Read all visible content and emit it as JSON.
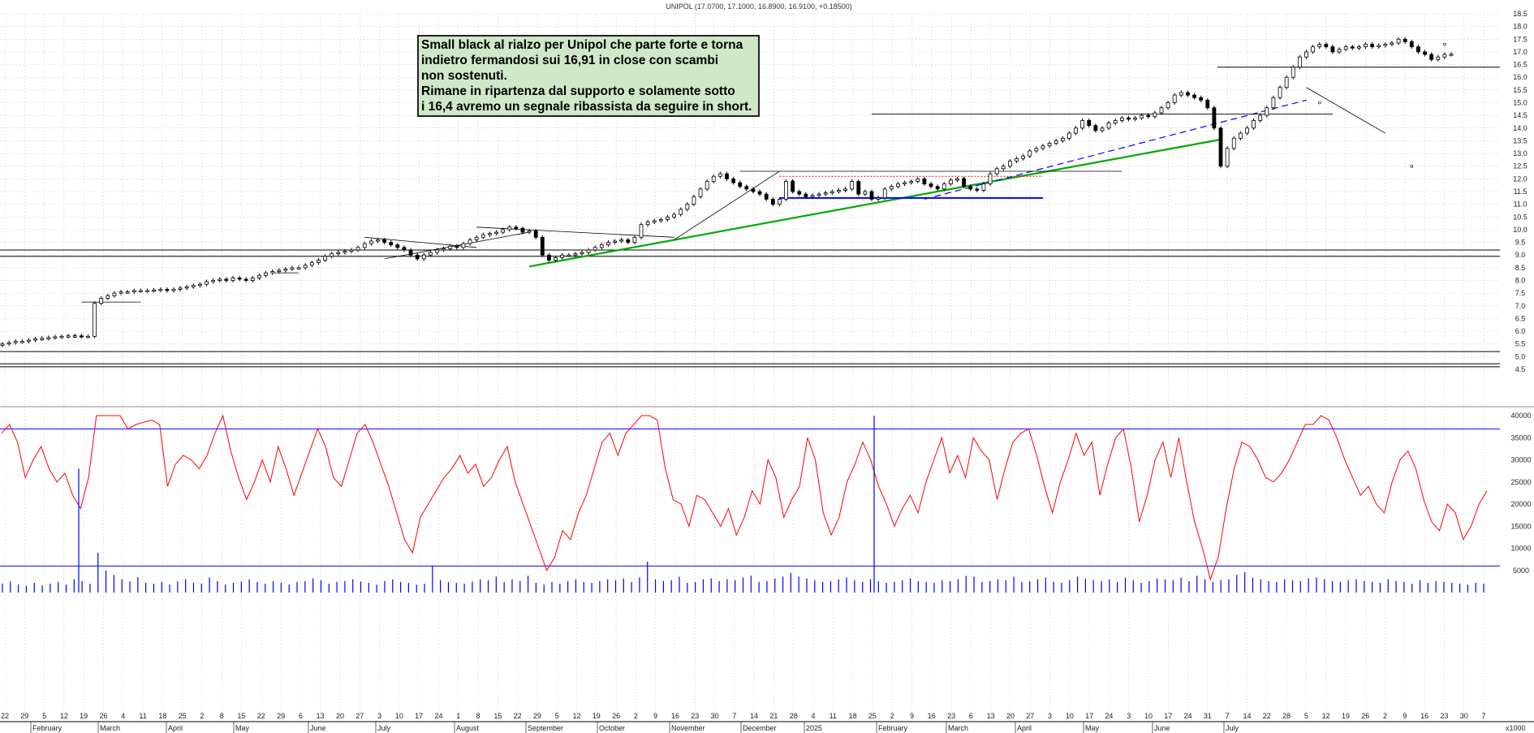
{
  "header": {
    "title": "UNIPOL (17.0700, 17.1000, 16.8900, 16.9100, +0.18500)"
  },
  "note": {
    "lines": [
      "Small black al rialzo per Unipol che parte forte e torna",
      "indietro fermandosi sui 16,91 in close con scambi",
      "non sostenuti.",
      "Rimane in ripartenza dal supporto e solamente sotto",
      "i 16,4 avremo un segnale ribassista da seguire in short."
    ]
  },
  "volume_unit": "x1000",
  "colors": {
    "candle": "#000000",
    "grid": "#a8a8a8",
    "support_green": "#00aa00",
    "blue": "#0000ff",
    "volume": "#ff0000",
    "red_dotted": "#ff0000"
  },
  "chart_data": [
    {
      "type": "candlestick",
      "title": "UNIPOL (17.0700, 17.1000, 16.8900, 16.9100, +0.18500)",
      "ylim": [
        4.5,
        18.5
      ],
      "y_ticks": [
        "4.5",
        "5.0",
        "5.5",
        "6.0",
        "6.5",
        "7.0",
        "7.5",
        "8.0",
        "8.5",
        "9.0",
        "9.5",
        "10.0",
        "10.5",
        "11.0",
        "11.5",
        "12.0",
        "12.5",
        "13.0",
        "13.5",
        "14.0",
        "14.5",
        "15.0",
        "15.5",
        "16.0",
        "16.5",
        "17.0",
        "17.5",
        "18.0",
        "18.5"
      ],
      "last": {
        "open": 17.07,
        "high": 17.1,
        "low": 16.89,
        "close": 16.91,
        "change": 0.185
      },
      "x_ticks": [
        "22",
        "29",
        "5",
        "12",
        "19",
        "26",
        "4",
        "11",
        "18",
        "25",
        "2",
        "8",
        "15",
        "22",
        "29",
        "6",
        "13",
        "20",
        "27",
        "3",
        "10",
        "17",
        "24",
        "1",
        "8",
        "15",
        "22",
        "29",
        "5",
        "12",
        "19",
        "26",
        "2",
        "9",
        "16",
        "23",
        "30",
        "7",
        "14",
        "21",
        "28",
        "4",
        "11",
        "18",
        "25",
        "2",
        "9",
        "16",
        "23",
        "6",
        "13",
        "20",
        "27",
        "3",
        "10",
        "17",
        "24",
        "3",
        "10",
        "17",
        "24",
        "31",
        "7",
        "14",
        "22",
        "28",
        "5",
        "12",
        "19",
        "26",
        "2",
        "9",
        "16",
        "23",
        "30",
        "7"
      ],
      "months": [
        "February",
        "March",
        "April",
        "May",
        "June",
        "July",
        "August",
        "September",
        "October",
        "November",
        "December",
        "2025",
        "February",
        "March",
        "April",
        "May",
        "June",
        "July"
      ],
      "key_levels": [
        16.4,
        9.2,
        8.95,
        5.2,
        4.72,
        4.6
      ],
      "closes": [
        5.5,
        5.55,
        5.6,
        5.6,
        5.65,
        5.7,
        5.72,
        5.75,
        5.78,
        5.8,
        5.82,
        5.82,
        5.8,
        5.8,
        7.1,
        7.3,
        7.4,
        7.5,
        7.55,
        7.55,
        7.6,
        7.6,
        7.6,
        7.62,
        7.65,
        7.6,
        7.65,
        7.7,
        7.75,
        7.8,
        7.85,
        7.95,
        8.0,
        8.05,
        8.0,
        8.1,
        8.05,
        8.0,
        8.1,
        8.2,
        8.3,
        8.35,
        8.4,
        8.45,
        8.5,
        8.5,
        8.6,
        8.7,
        8.8,
        8.95,
        9.05,
        9.1,
        9.15,
        9.2,
        9.3,
        9.45,
        9.55,
        9.6,
        9.5,
        9.4,
        9.3,
        9.2,
        9.0,
        8.85,
        9.0,
        9.1,
        9.2,
        9.25,
        9.35,
        9.3,
        9.45,
        9.6,
        9.7,
        9.8,
        9.85,
        9.9,
        10.0,
        10.1,
        10.05,
        9.9,
        9.95,
        9.7,
        9.0,
        8.8,
        8.9,
        9.0,
        9.0,
        9.05,
        9.1,
        9.2,
        9.3,
        9.4,
        9.5,
        9.55,
        9.6,
        9.5,
        9.7,
        10.2,
        10.3,
        10.35,
        10.4,
        10.5,
        10.6,
        10.8,
        11.0,
        11.3,
        11.6,
        11.9,
        12.1,
        12.2,
        12.0,
        11.85,
        11.7,
        11.6,
        11.5,
        11.4,
        11.2,
        11.0,
        11.2,
        11.9,
        11.5,
        11.4,
        11.3,
        11.35,
        11.4,
        11.45,
        11.5,
        11.55,
        11.6,
        11.9,
        11.4,
        11.5,
        11.2,
        11.25,
        11.6,
        11.7,
        11.8,
        11.85,
        11.9,
        12.0,
        11.8,
        11.7,
        11.6,
        11.8,
        11.95,
        12.0,
        11.7,
        11.6,
        11.55,
        11.8,
        12.2,
        12.4,
        12.5,
        12.7,
        12.8,
        12.9,
        13.1,
        13.2,
        13.3,
        13.4,
        13.5,
        13.6,
        13.8,
        14.0,
        14.3,
        14.1,
        13.9,
        14.0,
        14.2,
        14.3,
        14.4,
        14.35,
        14.4,
        14.5,
        14.45,
        14.6,
        14.8,
        15.0,
        15.3,
        15.4,
        15.3,
        15.2,
        15.1,
        14.8,
        14.0,
        12.5,
        13.2,
        13.6,
        13.8,
        14.0,
        14.3,
        14.5,
        14.8,
        15.2,
        15.6,
        16.0,
        16.4,
        16.8,
        17.0,
        17.2,
        17.3,
        17.2,
        17.0,
        17.1,
        17.2,
        17.15,
        17.2,
        17.3,
        17.2,
        17.25,
        17.3,
        17.35,
        17.5,
        17.4,
        17.2,
        17.0,
        16.9,
        16.7,
        16.8,
        16.9,
        16.91
      ],
      "markers": {
        "x": [
          11,
          120,
          146,
          200,
          214,
          219
        ],
        "y": [
          5.8,
          11.9,
          12.0,
          15.0,
          12.5,
          17.3
        ]
      }
    },
    {
      "type": "line",
      "series": [
        {
          "values": [
            36000,
            38000,
            34000,
            26000,
            30000,
            33000,
            28000,
            25000,
            27000,
            22000,
            19000,
            26000,
            40000,
            40000,
            40000,
            40000,
            37000,
            38000,
            38500,
            39000,
            38000,
            24000,
            29000,
            31000,
            30000,
            28000,
            31000,
            36000,
            40000,
            32000,
            26000,
            21000,
            25000,
            30000,
            25000,
            33000,
            28000,
            22000,
            27000,
            32000,
            37000,
            33000,
            26000,
            24000,
            30000,
            36000,
            38000,
            34000,
            29000,
            24000,
            18000,
            12000,
            9000,
            17000,
            20000,
            23000,
            26000,
            28000,
            31000,
            27000,
            29000,
            24000,
            26000,
            30000,
            33000,
            25000,
            20000,
            15000,
            10000,
            5000,
            8000,
            14000,
            12000,
            18000,
            22000,
            28000,
            34000,
            36000,
            31000,
            36000,
            38000,
            40000,
            40000,
            39000,
            28000,
            21000,
            20000,
            15000,
            22000,
            21000,
            18000,
            15000,
            19000,
            13000,
            17000,
            23000,
            20000,
            30000,
            26000,
            17000,
            21000,
            24000,
            35000,
            30000,
            18000,
            13000,
            17000,
            25000,
            29000,
            34000,
            30000,
            24000,
            20000,
            15000,
            19000,
            22000,
            18000,
            25000,
            30000,
            35000,
            27000,
            31000,
            26000,
            35000,
            32000,
            30000,
            21000,
            28000,
            34000,
            36000,
            37000,
            31000,
            24000,
            18000,
            25000,
            30000,
            36000,
            31000,
            34000,
            22000,
            29000,
            35000,
            37000,
            28000,
            16000,
            22000,
            30000,
            34000,
            26000,
            35000,
            25000,
            16000,
            10000,
            3000,
            8000,
            19000,
            28000,
            34000,
            33000,
            30000,
            26000,
            25000,
            27000,
            30000,
            34000,
            38000,
            38000,
            40000,
            39000,
            35000,
            30000,
            26000,
            22000,
            24000,
            20000,
            18000,
            25000,
            30000,
            32000,
            28000,
            21000,
            16000,
            14000,
            20000,
            18000,
            12000,
            15000,
            20000,
            23000
          ]
        }
      ]
    },
    {
      "type": "bar",
      "series": [
        {
          "values": [
            2000,
            2500,
            1800,
            1500,
            2200,
            1600,
            2000,
            2400,
            1800,
            3000,
            2600,
            2000,
            9000,
            5000,
            4000,
            3000,
            2500,
            3500,
            2200,
            2000,
            2400,
            1800,
            2500,
            3000,
            2200,
            2000,
            3400,
            2600,
            1800,
            2200,
            2500,
            3000,
            2400,
            2000,
            2600,
            2200,
            1800,
            2400,
            2600,
            3200,
            2800,
            2000,
            2400,
            2600,
            3000,
            2500,
            2200,
            1800,
            2600,
            3000,
            2400,
            2200,
            1800,
            2000,
            6000,
            2800,
            2400,
            2200,
            2000,
            2500,
            3000,
            2800,
            3600,
            2400,
            3000,
            2600,
            3800,
            2200,
            1800,
            2400,
            2000,
            2600,
            3000,
            2400,
            2200,
            2600,
            3000,
            2800,
            3200,
            2400,
            3400,
            7000,
            3000,
            2600,
            2800,
            3600,
            2200,
            2400,
            3000,
            3200,
            2600,
            3000,
            2800,
            3400,
            3800,
            2400,
            2600,
            3200,
            3600,
            4400,
            3600,
            3200,
            2800,
            2400,
            2600,
            3000,
            3400,
            2800,
            2400,
            3000,
            2600,
            2200,
            2400,
            2800,
            3200,
            2600,
            2400,
            2200,
            2800,
            2600,
            3000,
            3800,
            3600,
            2400,
            2600,
            3000,
            2800,
            3600,
            2400,
            2600,
            3000,
            3400,
            2400,
            2200,
            2800,
            3600,
            3200,
            2800,
            2600,
            3000,
            2400,
            3400,
            2800,
            2200,
            2600,
            3200,
            3000,
            2800,
            3400,
            2600,
            3800,
            3000,
            2400,
            2800,
            3000,
            4000,
            4600,
            3400,
            3000,
            2600,
            2400,
            3000,
            2800,
            2600,
            3200,
            3400,
            3000,
            2600,
            2400,
            2800,
            3000,
            2600,
            2400,
            2200,
            3000,
            2600,
            2400,
            2000,
            2800,
            2200,
            2600,
            2400,
            2200,
            2000,
            1800,
            2200,
            2000
          ]
        }
      ]
    }
  ]
}
